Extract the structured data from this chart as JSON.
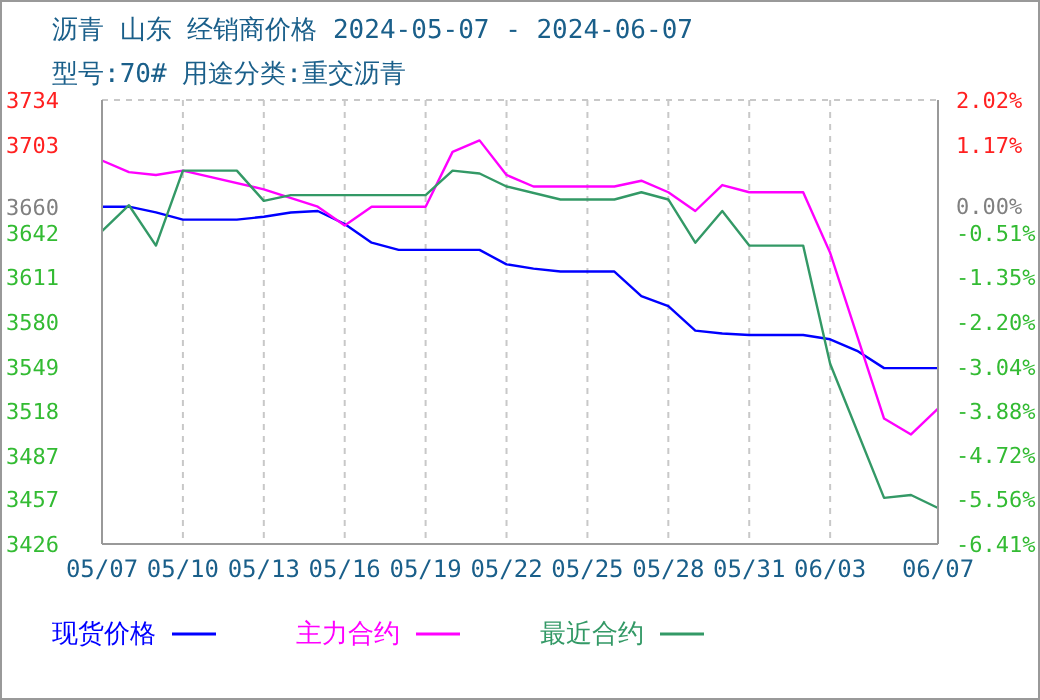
{
  "chart_data": {
    "type": "line",
    "title": "沥青 山东 经销商价格 2024-05-07 - 2024-06-07",
    "subtitle": "型号:70# 用途分类:重交沥青",
    "xlim": [
      "--05-07",
      "--06-07"
    ],
    "xticks": [
      {
        "value": "--05-07",
        "label": "05/07"
      },
      {
        "value": "--05-10",
        "label": "05/10"
      },
      {
        "value": "--05-13",
        "label": "05/13"
      },
      {
        "value": "--05-16",
        "label": "05/16"
      },
      {
        "value": "--05-19",
        "label": "05/19"
      },
      {
        "value": "--05-22",
        "label": "05/22"
      },
      {
        "value": "--05-25",
        "label": "05/25"
      },
      {
        "value": "--05-28",
        "label": "05/28"
      },
      {
        "value": "--05-31",
        "label": "05/31"
      },
      {
        "value": "--06-03",
        "label": "06/03"
      },
      {
        "value": "--06-07",
        "label": "06/07"
      }
    ],
    "ylim": [
      3426,
      3734
    ],
    "yticks": [
      3426,
      3457,
      3487,
      3518,
      3549,
      3580,
      3611,
      3642,
      3660,
      3703,
      3734
    ],
    "y2lim": [
      -6.41,
      2.02
    ],
    "y2ticks": [
      {
        "value": -6.41,
        "label": "-6.41%"
      },
      {
        "value": -5.56,
        "label": "-5.56%"
      },
      {
        "value": -4.72,
        "label": "-4.72%"
      },
      {
        "value": -3.88,
        "label": "-3.88%"
      },
      {
        "value": -3.04,
        "label": "-3.04%"
      },
      {
        "value": -2.2,
        "label": "-2.20%"
      },
      {
        "value": -1.35,
        "label": "-1.35%"
      },
      {
        "value": -0.51,
        "label": "-0.51%"
      },
      {
        "value": 0,
        "label": "0.00%"
      },
      {
        "value": 1.17,
        "label": "1.17%"
      },
      {
        "value": 2.02,
        "label": "2.02%"
      }
    ],
    "grid": true,
    "legend": "bottom",
    "marker": "none",
    "line_style": "solid",
    "series": [
      {
        "name": "现货价格",
        "color": "#0000ff",
        "x": [
          "--05-07",
          "--05-08",
          "--05-09",
          "--05-10",
          "--05-11",
          "--05-12",
          "--05-13",
          "--05-14",
          "--05-15",
          "--05-16",
          "--05-17",
          "--05-18",
          "--05-19",
          "--05-20",
          "--05-21",
          "--05-22",
          "--05-23",
          "--05-24",
          "--05-25",
          "--05-26",
          "--05-27",
          "--05-28",
          "--05-29",
          "--05-30",
          "--05-31",
          "--06-01",
          "--06-02",
          "--06-03",
          "--06-04",
          "--06-05",
          "--06-06",
          "--06-07"
        ],
        "values": [
          3660,
          3660,
          3656,
          3651,
          3651,
          3651,
          3653,
          3656,
          3657,
          3648,
          3635,
          3630,
          3630,
          3630,
          3630,
          3620,
          3617,
          3615,
          3615,
          3615,
          3598,
          3591,
          3574,
          3572,
          3571,
          3571,
          3571,
          3568,
          3560,
          3548,
          3548,
          3548
        ]
      },
      {
        "name": "主力合约",
        "color": "#ff00ff",
        "x": [
          "--05-07",
          "--05-08",
          "--05-09",
          "--05-10",
          "--05-13",
          "--05-15",
          "--05-16",
          "--05-17",
          "--05-19",
          "--05-20",
          "--05-21",
          "--05-22",
          "--05-23",
          "--05-26",
          "--05-27",
          "--05-28",
          "--05-29",
          "--05-30",
          "--05-31",
          "--06-02",
          "--06-03",
          "--06-05",
          "--06-06",
          "--06-07"
        ],
        "values": [
          3692,
          3684,
          3682,
          3685,
          3672,
          3660,
          3647,
          3660,
          3660,
          3698,
          3706,
          3682,
          3674,
          3674,
          3678,
          3670,
          3657,
          3675,
          3670,
          3670,
          3628,
          3513,
          3502,
          3520
        ]
      },
      {
        "name": "最近合约",
        "color": "#339966",
        "x": [
          "--05-07",
          "--05-08",
          "--05-09",
          "--05-10",
          "--05-12",
          "--05-13",
          "--05-14",
          "--05-19",
          "--05-20",
          "--05-21",
          "--05-22",
          "--05-24",
          "--05-26",
          "--05-27",
          "--05-28",
          "--05-29",
          "--05-30",
          "--05-31",
          "--06-02",
          "--06-03",
          "--06-05",
          "--06-06",
          "--06-07"
        ],
        "values": [
          3643,
          3661,
          3633,
          3685,
          3685,
          3664,
          3668,
          3668,
          3685,
          3683,
          3674,
          3665,
          3665,
          3670,
          3665,
          3635,
          3657,
          3633,
          3633,
          3551,
          3458,
          3460,
          3451
        ]
      }
    ]
  }
}
